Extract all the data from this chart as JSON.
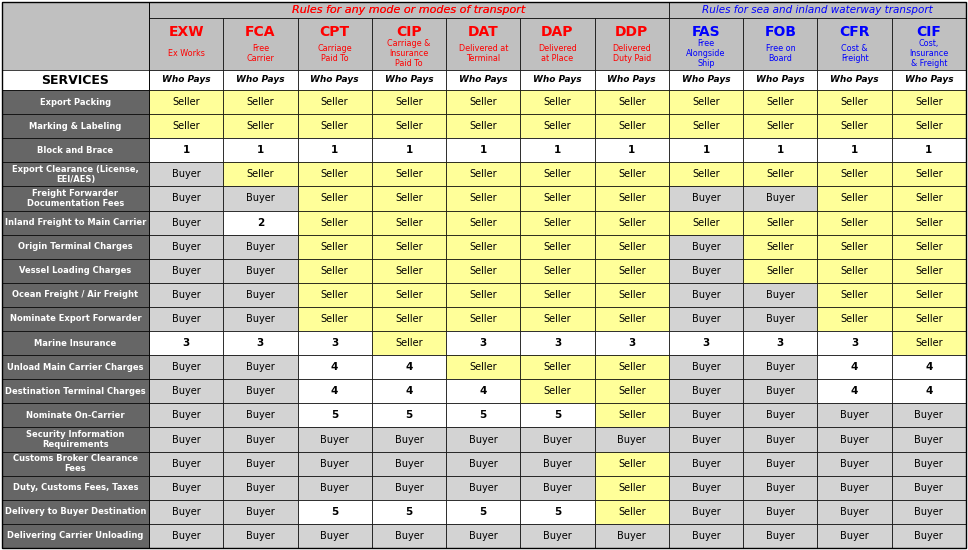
{
  "header1_text": "Rules for any mode or modes of transport",
  "header2_text": "Rules for sea and inland waterway transport",
  "col_codes": [
    "EXW",
    "FCA",
    "CPT",
    "CIP",
    "DAT",
    "DAP",
    "DDP",
    "FAS",
    "FOB",
    "CFR",
    "CIF"
  ],
  "col_subtitles": [
    "Ex Works",
    "Free\nCarrier",
    "Carriage\nPaid To",
    "Carriage &\nInsurance\nPaid To",
    "Delivered at\nTerminal",
    "Delivered\nat Place",
    "Delivered\nDuty Paid",
    "Free\nAlongside\nShip",
    "Free on\nBoard",
    "Cost &\nFreight",
    "Cost,\nInsurance\n& Freight"
  ],
  "who_pays": "Who Pays",
  "services_label": "SERVICES",
  "service_rows": [
    "Export Packing",
    "Marking & Labeling",
    "Block and Brace",
    "Export Clearance (License,\nEEI/AES)",
    "Freight Forwarder\nDocumentation Fees",
    "Inland Freight to Main Carrier",
    "Origin Terminal Charges",
    "Vessel Loading Charges",
    "Ocean Freight / Air Freight",
    "Nominate Export Forwarder",
    "Marine Insurance",
    "Unload Main Carrier Charges",
    "Destination Terminal Charges",
    "Nominate On-Carrier",
    "Security Information\nRequirements",
    "Customs Broker Clearance\nFees",
    "Duty, Customs Fees, Taxes",
    "Delivery to Buyer Destination",
    "Delivering Carrier Unloading"
  ],
  "table_data": [
    [
      "Seller",
      "Seller",
      "Seller",
      "Seller",
      "Seller",
      "Seller",
      "Seller",
      "Seller",
      "Seller",
      "Seller",
      "Seller"
    ],
    [
      "Seller",
      "Seller",
      "Seller",
      "Seller",
      "Seller",
      "Seller",
      "Seller",
      "Seller",
      "Seller",
      "Seller",
      "Seller"
    ],
    [
      "1",
      "1",
      "1",
      "1",
      "1",
      "1",
      "1",
      "1",
      "1",
      "1",
      "1"
    ],
    [
      "Buyer",
      "Seller",
      "Seller",
      "Seller",
      "Seller",
      "Seller",
      "Seller",
      "Seller",
      "Seller",
      "Seller",
      "Seller"
    ],
    [
      "Buyer",
      "Buyer",
      "Seller",
      "Seller",
      "Seller",
      "Seller",
      "Seller",
      "Buyer",
      "Buyer",
      "Seller",
      "Seller"
    ],
    [
      "Buyer",
      "2",
      "Seller",
      "Seller",
      "Seller",
      "Seller",
      "Seller",
      "Seller",
      "Seller",
      "Seller",
      "Seller"
    ],
    [
      "Buyer",
      "Buyer",
      "Seller",
      "Seller",
      "Seller",
      "Seller",
      "Seller",
      "Buyer",
      "Seller",
      "Seller",
      "Seller"
    ],
    [
      "Buyer",
      "Buyer",
      "Seller",
      "Seller",
      "Seller",
      "Seller",
      "Seller",
      "Buyer",
      "Seller",
      "Seller",
      "Seller"
    ],
    [
      "Buyer",
      "Buyer",
      "Seller",
      "Seller",
      "Seller",
      "Seller",
      "Seller",
      "Buyer",
      "Buyer",
      "Seller",
      "Seller"
    ],
    [
      "Buyer",
      "Buyer",
      "Seller",
      "Seller",
      "Seller",
      "Seller",
      "Seller",
      "Buyer",
      "Buyer",
      "Seller",
      "Seller"
    ],
    [
      "3",
      "3",
      "3",
      "Seller",
      "3",
      "3",
      "3",
      "3",
      "3",
      "3",
      "Seller"
    ],
    [
      "Buyer",
      "Buyer",
      "4",
      "4",
      "Seller",
      "Seller",
      "Seller",
      "Buyer",
      "Buyer",
      "4",
      "4"
    ],
    [
      "Buyer",
      "Buyer",
      "4",
      "4",
      "4",
      "Seller",
      "Seller",
      "Buyer",
      "Buyer",
      "4",
      "4"
    ],
    [
      "Buyer",
      "Buyer",
      "5",
      "5",
      "5",
      "5",
      "Seller",
      "Buyer",
      "Buyer",
      "Buyer",
      "Buyer"
    ],
    [
      "Buyer",
      "Buyer",
      "Buyer",
      "Buyer",
      "Buyer",
      "Buyer",
      "Buyer",
      "Buyer",
      "Buyer",
      "Buyer",
      "Buyer"
    ],
    [
      "Buyer",
      "Buyer",
      "Buyer",
      "Buyer",
      "Buyer",
      "Buyer",
      "Seller",
      "Buyer",
      "Buyer",
      "Buyer",
      "Buyer"
    ],
    [
      "Buyer",
      "Buyer",
      "Buyer",
      "Buyer",
      "Buyer",
      "Buyer",
      "Seller",
      "Buyer",
      "Buyer",
      "Buyer",
      "Buyer"
    ],
    [
      "Buyer",
      "Buyer",
      "5",
      "5",
      "5",
      "5",
      "Seller",
      "Buyer",
      "Buyer",
      "Buyer",
      "Buyer"
    ],
    [
      "Buyer",
      "Buyer",
      "Buyer",
      "Buyer",
      "Buyer",
      "Buyer",
      "Buyer",
      "Buyer",
      "Buyer",
      "Buyer",
      "Buyer"
    ]
  ],
  "bg_dark_gray": "#666666",
  "bg_header_gray": "#C0C0C0",
  "bg_yellow": "#FFFF99",
  "bg_light_gray": "#D3D3D3",
  "bg_white": "#FFFFFF",
  "col_code_color_any": "#FF0000",
  "col_code_color_sea": "#0000FF",
  "header_text_color_any": "#FF0000",
  "header_text_color_sea": "#0000FF"
}
